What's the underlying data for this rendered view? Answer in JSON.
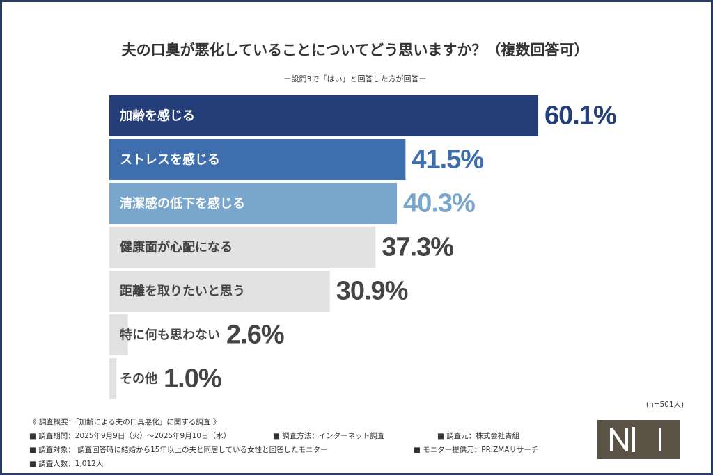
{
  "chart_data": {
    "type": "bar",
    "orientation": "horizontal",
    "title": "夫の口臭が悪化していることについてどう思いますか？（複数回答可）",
    "subtitle": "ー設問3で「はい」と回答した方が回答ー",
    "categories": [
      "加齢を感じる",
      "ストレスを感じる",
      "清潔感の低下を感じる",
      "健康面が心配になる",
      "距離を取りたいと思う",
      "特に何も思わない",
      "その他"
    ],
    "values": [
      60.1,
      41.5,
      40.3,
      37.3,
      30.9,
      2.6,
      1.0
    ],
    "value_labels": [
      "60.1%",
      "41.5%",
      "40.3%",
      "37.3%",
      "30.9%",
      "2.6%",
      "1.0%"
    ],
    "colors": [
      "#233e78",
      "#3f6eaf",
      "#79a6cc",
      "#e2e2e2",
      "#e2e2e2",
      "#e2e2e2",
      "#e2e2e2"
    ],
    "label_colors": [
      "#ffffff",
      "#ffffff",
      "#ffffff",
      "#444444",
      "#444444",
      "#444444",
      "#444444"
    ],
    "value_label_colors": [
      "#233e78",
      "#3f6eaf",
      "#79a6cc",
      "#444444",
      "#444444",
      "#444444",
      "#444444"
    ],
    "note": "(n=501人)",
    "footnotes": [
      "《 調査概要：「加齢による夫の口臭悪化」に関する調査 》",
      "■ 調査期間：2025年9月9日（火）～2025年9月10日（水）",
      "■ 調査方法：インターネット調査",
      "■ 調査元：株式会社青組",
      "■ 調査対象： 調査回答時に結婚から15年以上の夫と同居している女性と回答したモニター",
      "■ モニター提供元：PRIZMAリサーチ",
      "■ 調査人数：1,012人"
    ]
  }
}
